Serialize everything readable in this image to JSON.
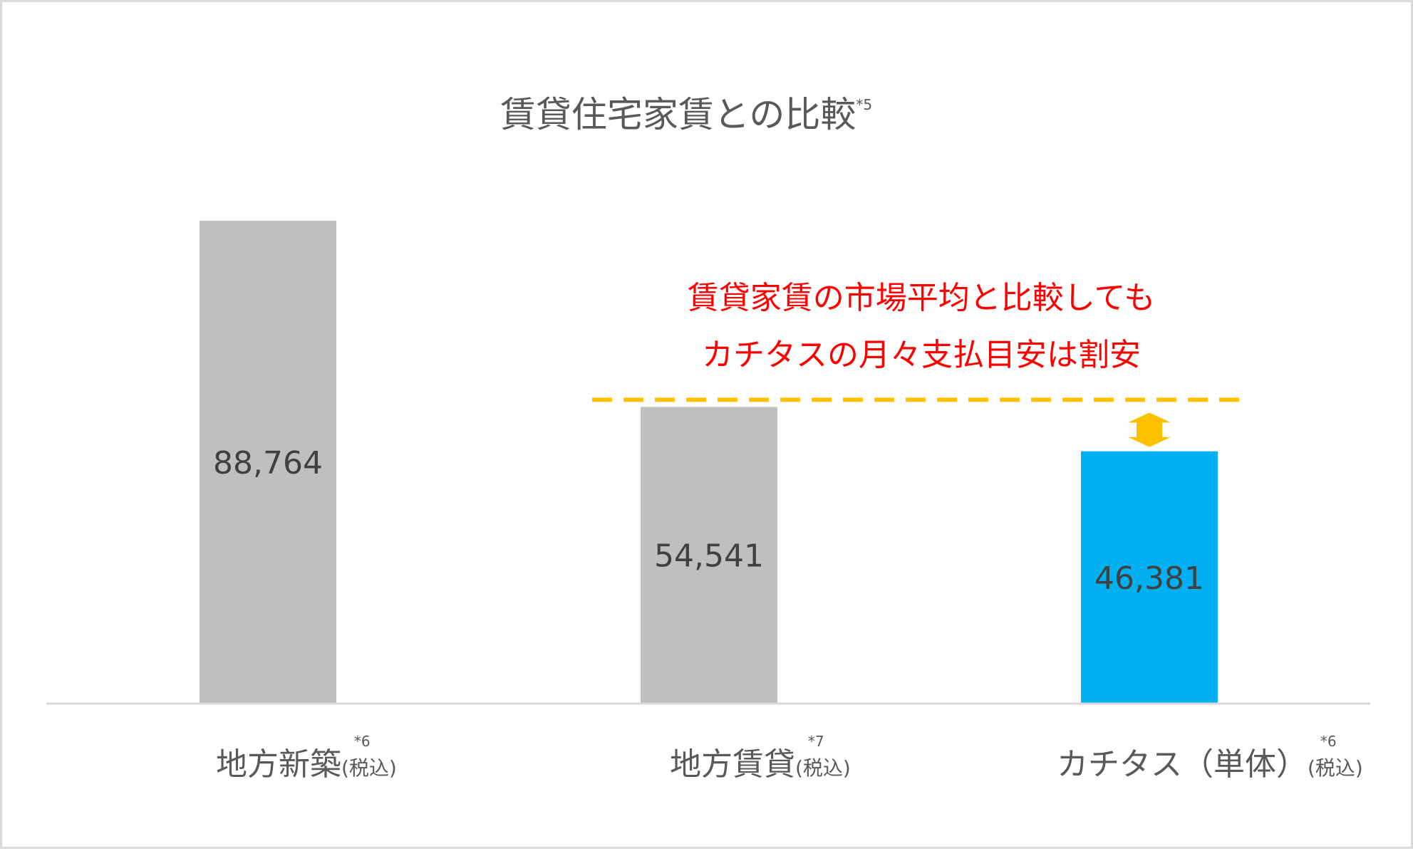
{
  "chart_data": {
    "type": "bar",
    "title": "賃貸住宅家賃との比較",
    "title_note": "*5",
    "categories": [
      {
        "label": "地方新築",
        "note": "*6",
        "suffix": "(税込)"
      },
      {
        "label": "地方賃貸",
        "note": "*7",
        "suffix": "(税込)"
      },
      {
        "label": "カチタス（単体）",
        "note": "*6",
        "suffix": "(税込)"
      }
    ],
    "values": [
      88764,
      54541,
      46381
    ],
    "value_labels": [
      "88,764",
      "54,541",
      "46,381"
    ],
    "ylim": [
      0,
      88764
    ],
    "xlabel": "",
    "ylabel": "",
    "grid": false,
    "colors": [
      "#bfbfbf",
      "#bfbfbf",
      "#00b0f0"
    ],
    "annotation": {
      "lines": [
        "賃貸家賃の市場平均と比較しても",
        "カチタスの月々支払目安は割安"
      ],
      "color": "#ff0000",
      "reference_line_value": 54541,
      "reference_line_color": "#ffc000",
      "reference_line_style": "dashed",
      "arrow_color": "#ffc000"
    }
  }
}
